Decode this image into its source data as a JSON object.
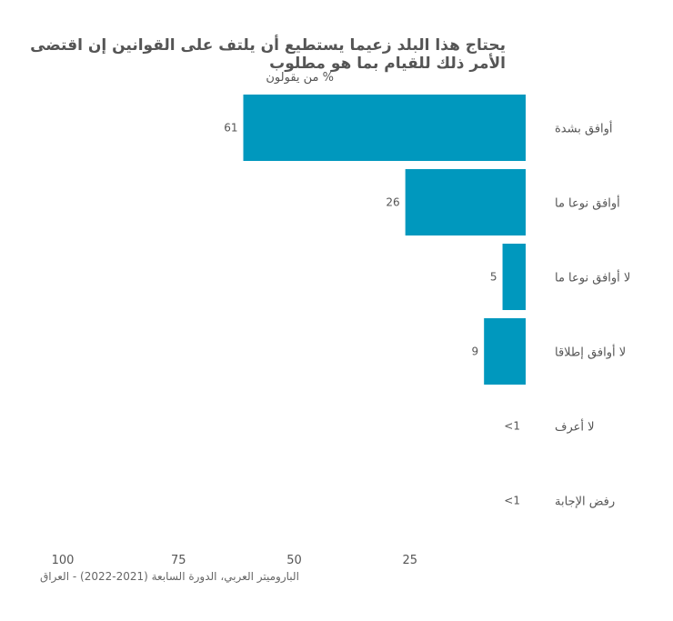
{
  "chart_data": {
    "type": "bar",
    "orientation": "horizontal",
    "title": "يحتاج هذا البلد زعيما يستطيع أن يلتف على القوانين إن اقتضى الأمر ذلك للقيام بما هو مطلوب",
    "title_lines": [
      "يحتاج هذا البلد زعيما يستطيع أن يلتف على القوانين إن اقتضى",
      "الأمر ذلك للقيام بما هو مطلوب"
    ],
    "subtitle": "% من يقولون",
    "categories": [
      "أوافق بشدة",
      "أوافق نوعا ما",
      "لا أوافق نوعا ما",
      "لا أوافق إطلاقا",
      "لا أعرف",
      "رفض الإجابة"
    ],
    "values": [
      61,
      26,
      5,
      9,
      0.5,
      0.5
    ],
    "value_labels": [
      "61",
      "26",
      "5",
      "9",
      "<1",
      "<1"
    ],
    "x_ticks": [
      100,
      75,
      50,
      25
    ],
    "xlim": [
      0,
      100
    ],
    "x_reversed": true,
    "bar_color": "#0098be",
    "source": "الباروميتر العربي، الدورة السابعة (2021-2022) - العراق"
  }
}
